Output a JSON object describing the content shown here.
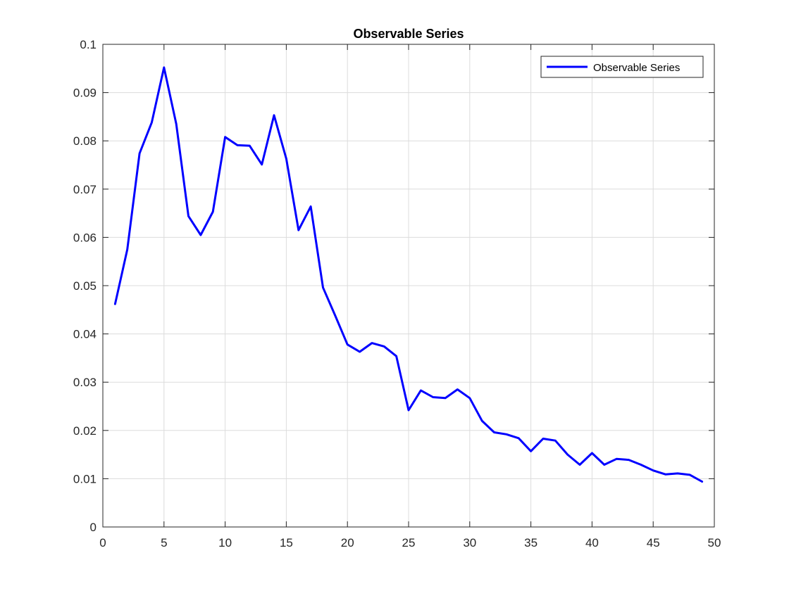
{
  "chart_data": {
    "type": "line",
    "title": "Observable Series",
    "xlabel": "",
    "ylabel": "",
    "xlim": [
      0,
      50
    ],
    "ylim": [
      0,
      0.1
    ],
    "xticks": [
      0,
      5,
      10,
      15,
      20,
      25,
      30,
      35,
      40,
      45,
      50
    ],
    "yticks": [
      0,
      0.01,
      0.02,
      0.03,
      0.04,
      0.05,
      0.06,
      0.07,
      0.08,
      0.09,
      0.1
    ],
    "xtick_labels": [
      "0",
      "5",
      "10",
      "15",
      "20",
      "25",
      "30",
      "35",
      "40",
      "45",
      "50"
    ],
    "ytick_labels": [
      "0",
      "0.01",
      "0.02",
      "0.03",
      "0.04",
      "0.05",
      "0.06",
      "0.07",
      "0.08",
      "0.09",
      "0.1"
    ],
    "grid": true,
    "legend_position": "top-right",
    "series": [
      {
        "name": "Observable Series",
        "color": "#0000ff",
        "x": [
          1,
          2,
          3,
          4,
          5,
          6,
          7,
          8,
          9,
          10,
          11,
          12,
          13,
          14,
          15,
          16,
          17,
          18,
          19,
          20,
          21,
          22,
          23,
          24,
          25,
          26,
          27,
          28,
          29,
          30,
          31,
          32,
          33,
          34,
          35,
          36,
          37,
          38,
          39,
          40,
          41,
          42,
          43,
          44,
          45,
          46,
          47,
          48,
          49
        ],
        "y": [
          0.0462,
          0.0575,
          0.0774,
          0.0838,
          0.0952,
          0.0835,
          0.0644,
          0.0605,
          0.0653,
          0.0808,
          0.0791,
          0.079,
          0.0751,
          0.0853,
          0.0763,
          0.0615,
          0.0664,
          0.0496,
          0.0438,
          0.0378,
          0.0363,
          0.0381,
          0.0374,
          0.0354,
          0.0242,
          0.0283,
          0.0269,
          0.0267,
          0.0285,
          0.0267,
          0.022,
          0.0196,
          0.0192,
          0.0184,
          0.0157,
          0.0183,
          0.0179,
          0.015,
          0.0129,
          0.0153,
          0.0129,
          0.0141,
          0.0139,
          0.0129,
          0.0117,
          0.0109,
          0.0111,
          0.0108,
          0.0094
        ]
      }
    ]
  }
}
